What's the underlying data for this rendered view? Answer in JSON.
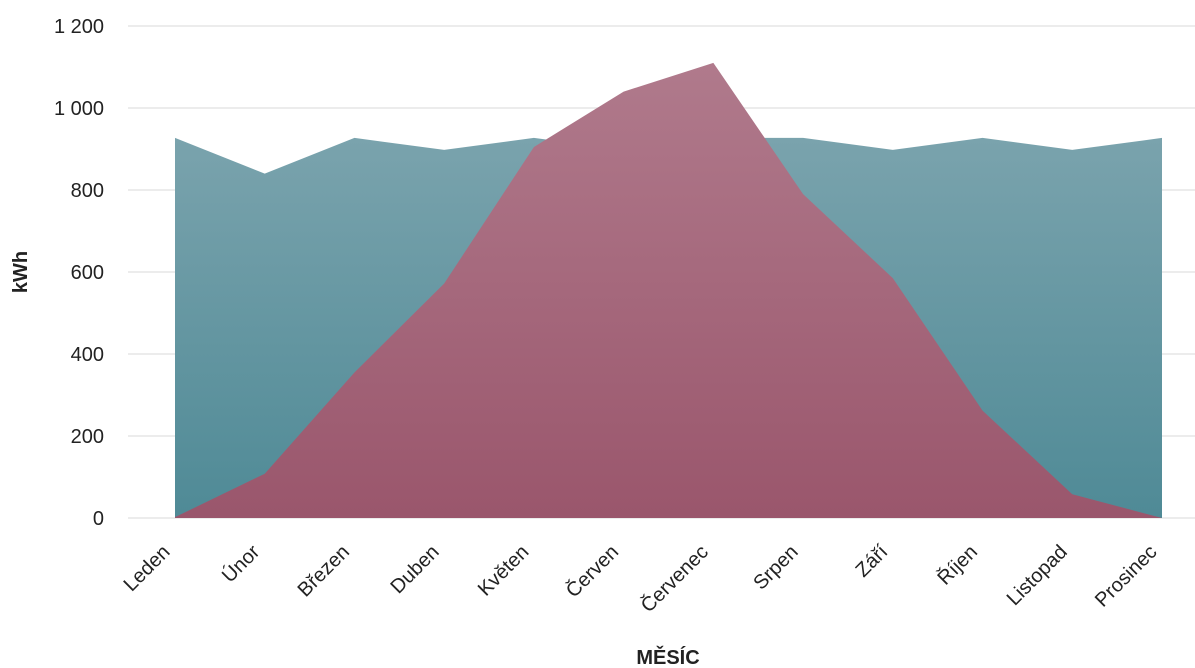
{
  "chart_data": {
    "type": "area",
    "title": "",
    "xlabel": "MĚSÍC",
    "ylabel": "kWh",
    "categories": [
      "Leden",
      "Únor",
      "Březen",
      "Duben",
      "Květen",
      "Červen",
      "Červenec",
      "Srpen",
      "Září",
      "Říjen",
      "Listopad",
      "Prosinec"
    ],
    "series": [
      {
        "values": [
          927,
          840,
          927,
          898,
          927,
          898,
          927,
          927,
          898,
          927,
          898,
          927
        ],
        "color_top": "#7aa3ad",
        "color_bottom": "#4f8a96"
      },
      {
        "values": [
          2,
          108,
          355,
          572,
          905,
          1040,
          1110,
          790,
          585,
          262,
          58,
          0
        ],
        "color_top": "#b07a8c",
        "color_bottom": "#9a566c"
      }
    ],
    "ylim": [
      0,
      1200
    ],
    "yticks": [
      0,
      200,
      400,
      600,
      800,
      1000,
      1200
    ],
    "ytick_labels": [
      "0",
      "200",
      "400",
      "600",
      "800",
      "1 000",
      "1 200"
    ],
    "grid": true,
    "legend": "none"
  }
}
